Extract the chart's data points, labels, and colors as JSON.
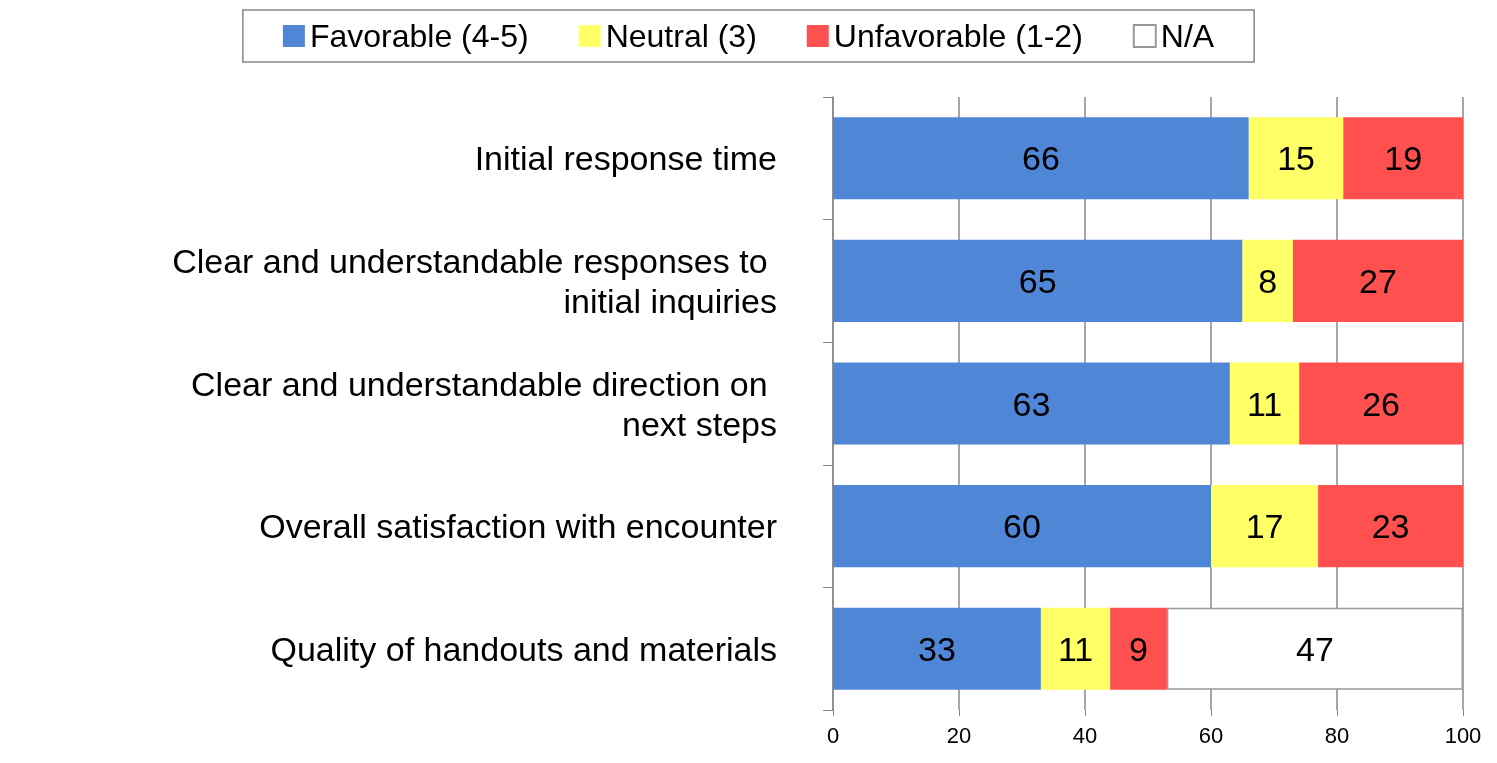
{
  "chart_data": {
    "type": "bar",
    "orientation": "horizontal",
    "stacked": true,
    "data_labels": true,
    "grid": "x",
    "legend": "top",
    "categories": [
      "Initial response time",
      "Clear and understandable responses to initial inquiries",
      "Clear and understandable direction on next steps",
      "Overall satisfaction with encounter",
      "Quality of handouts and materials"
    ],
    "series": [
      {
        "name": "Favorable (4-5)",
        "color": "#4f86d6",
        "values": [
          66,
          65,
          63,
          60,
          33
        ]
      },
      {
        "name": "Neutral (3)",
        "color": "#ffff66",
        "values": [
          15,
          8,
          11,
          17,
          11
        ]
      },
      {
        "name": "Unfavorable (1-2)",
        "color": "#ff5050",
        "values": [
          19,
          27,
          26,
          23,
          9
        ]
      },
      {
        "name": "N/A",
        "color": "#ffffff",
        "values": [
          null,
          null,
          null,
          null,
          47
        ]
      }
    ],
    "xlim": [
      0,
      100
    ],
    "xticks": [
      0,
      20,
      40,
      60,
      80,
      100
    ]
  }
}
